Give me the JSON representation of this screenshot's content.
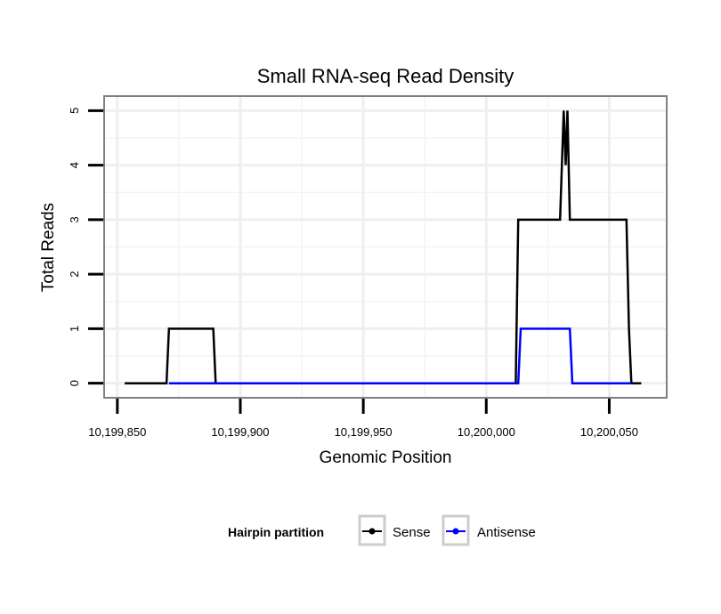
{
  "chart_data": {
    "type": "line",
    "title": "Small RNA-seq Read Density",
    "xlabel": "Genomic Position",
    "ylabel": "Total Reads",
    "xlim": [
      10199845,
      10200073
    ],
    "ylim": [
      -0.25,
      5.25
    ],
    "x_ticks": [
      10199850,
      10199900,
      10199950,
      10200000,
      10200050
    ],
    "x_tick_labels": [
      "10,199,850",
      "10,199,900",
      "10,199,950",
      "10,200,000",
      "10,200,050"
    ],
    "y_ticks": [
      0,
      1,
      2,
      3,
      4,
      5
    ],
    "y_tick_labels": [
      "0",
      "1",
      "2",
      "3",
      "4",
      "5"
    ],
    "legend_title": "Hairpin partition",
    "legend_position": "bottom",
    "series": [
      {
        "name": "Sense",
        "color": "#000000",
        "points": [
          [
            10199853,
            0
          ],
          [
            10199870,
            0
          ],
          [
            10199871,
            1
          ],
          [
            10199889,
            1
          ],
          [
            10199890,
            0
          ],
          [
            10200012,
            0
          ],
          [
            10200013,
            3
          ],
          [
            10200030,
            3
          ],
          [
            10200031.5,
            5
          ],
          [
            10200032.3,
            4
          ],
          [
            10200033,
            5
          ],
          [
            10200034,
            3
          ],
          [
            10200057,
            3
          ],
          [
            10200058,
            1
          ],
          [
            10200059,
            0
          ],
          [
            10200063,
            0
          ]
        ]
      },
      {
        "name": "Antisense",
        "color": "#0000ff",
        "points": [
          [
            10199871,
            0
          ],
          [
            10199890,
            0
          ],
          [
            10200013,
            0
          ],
          [
            10200014,
            1
          ],
          [
            10200034,
            1
          ],
          [
            10200035,
            0
          ],
          [
            10200059,
            0
          ]
        ]
      }
    ]
  }
}
